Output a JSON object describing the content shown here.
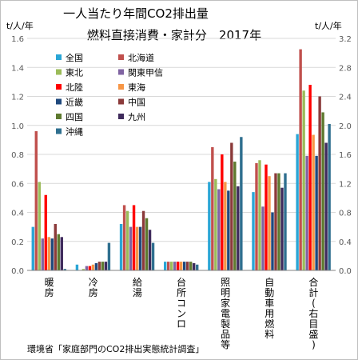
{
  "chart_data": {
    "type": "bar",
    "title_lines": [
      "一人当たり年間CO2排出量",
      "燃料直接消費・家計分　2017年"
    ],
    "ylabel_left": "t/人/年",
    "ylabel_right": "t/人/年",
    "ylim": [
      0,
      1.6
    ],
    "ylim_right": [
      0,
      3.2
    ],
    "yticks": [
      "0.0",
      "0.2",
      "0.4",
      "0.6",
      "0.8",
      "1.0",
      "1.2",
      "1.4",
      "1.6"
    ],
    "yticks_right": [
      "0.0",
      "0.4",
      "0.8",
      "1.2",
      "1.6",
      "2.0",
      "2.4",
      "2.8",
      "3.2"
    ],
    "grid": true,
    "legend_position": "top-left",
    "categories": [
      "暖房",
      "冷房",
      "給湯",
      "台所コンロ",
      "照明家電製品等",
      "自動車用燃料",
      "合計(右目盛)"
    ],
    "series": [
      {
        "name": "全国",
        "color": "#2AA6D6",
        "values": [
          0.3,
          0.04,
          0.32,
          0.06,
          0.61,
          0.54,
          1.88
        ]
      },
      {
        "name": "北海道",
        "color": "#C0504D",
        "values": [
          0.96,
          0.0,
          0.45,
          0.06,
          0.85,
          0.74,
          3.05
        ]
      },
      {
        "name": "東北",
        "color": "#9BBB59",
        "values": [
          0.61,
          0.01,
          0.41,
          0.06,
          0.63,
          0.76,
          2.48
        ]
      },
      {
        "name": "関東甲信",
        "color": "#8064A2",
        "values": [
          0.22,
          0.03,
          0.3,
          0.06,
          0.56,
          0.44,
          1.58
        ]
      },
      {
        "name": "北陸",
        "color": "#FF0000",
        "values": [
          0.52,
          0.03,
          0.45,
          0.06,
          0.8,
          0.73,
          2.56
        ]
      },
      {
        "name": "東海",
        "color": "#F79646",
        "values": [
          0.23,
          0.04,
          0.3,
          0.06,
          0.61,
          0.65,
          1.87
        ]
      },
      {
        "name": "近畿",
        "color": "#1F497D",
        "values": [
          0.22,
          0.05,
          0.3,
          0.06,
          0.55,
          0.4,
          1.58
        ]
      },
      {
        "name": "中国",
        "color": "#8B3A3A",
        "values": [
          0.32,
          0.06,
          0.41,
          0.06,
          0.88,
          0.67,
          2.4
        ]
      },
      {
        "name": "四国",
        "color": "#5E7A2F",
        "values": [
          0.25,
          0.06,
          0.36,
          0.06,
          0.75,
          0.67,
          2.18
        ]
      },
      {
        "name": "九州",
        "color": "#3F2B5C",
        "values": [
          0.23,
          0.06,
          0.28,
          0.05,
          0.58,
          0.57,
          1.76
        ]
      },
      {
        "name": "沖縄",
        "color": "#2F6F8F",
        "values": [
          0.01,
          0.19,
          0.19,
          0.04,
          0.92,
          0.67,
          2.02
        ]
      }
    ],
    "right_axis_category": "合計(右目盛)"
  },
  "source": "環境省「家庭部門のCO2排出実態統計調査」"
}
